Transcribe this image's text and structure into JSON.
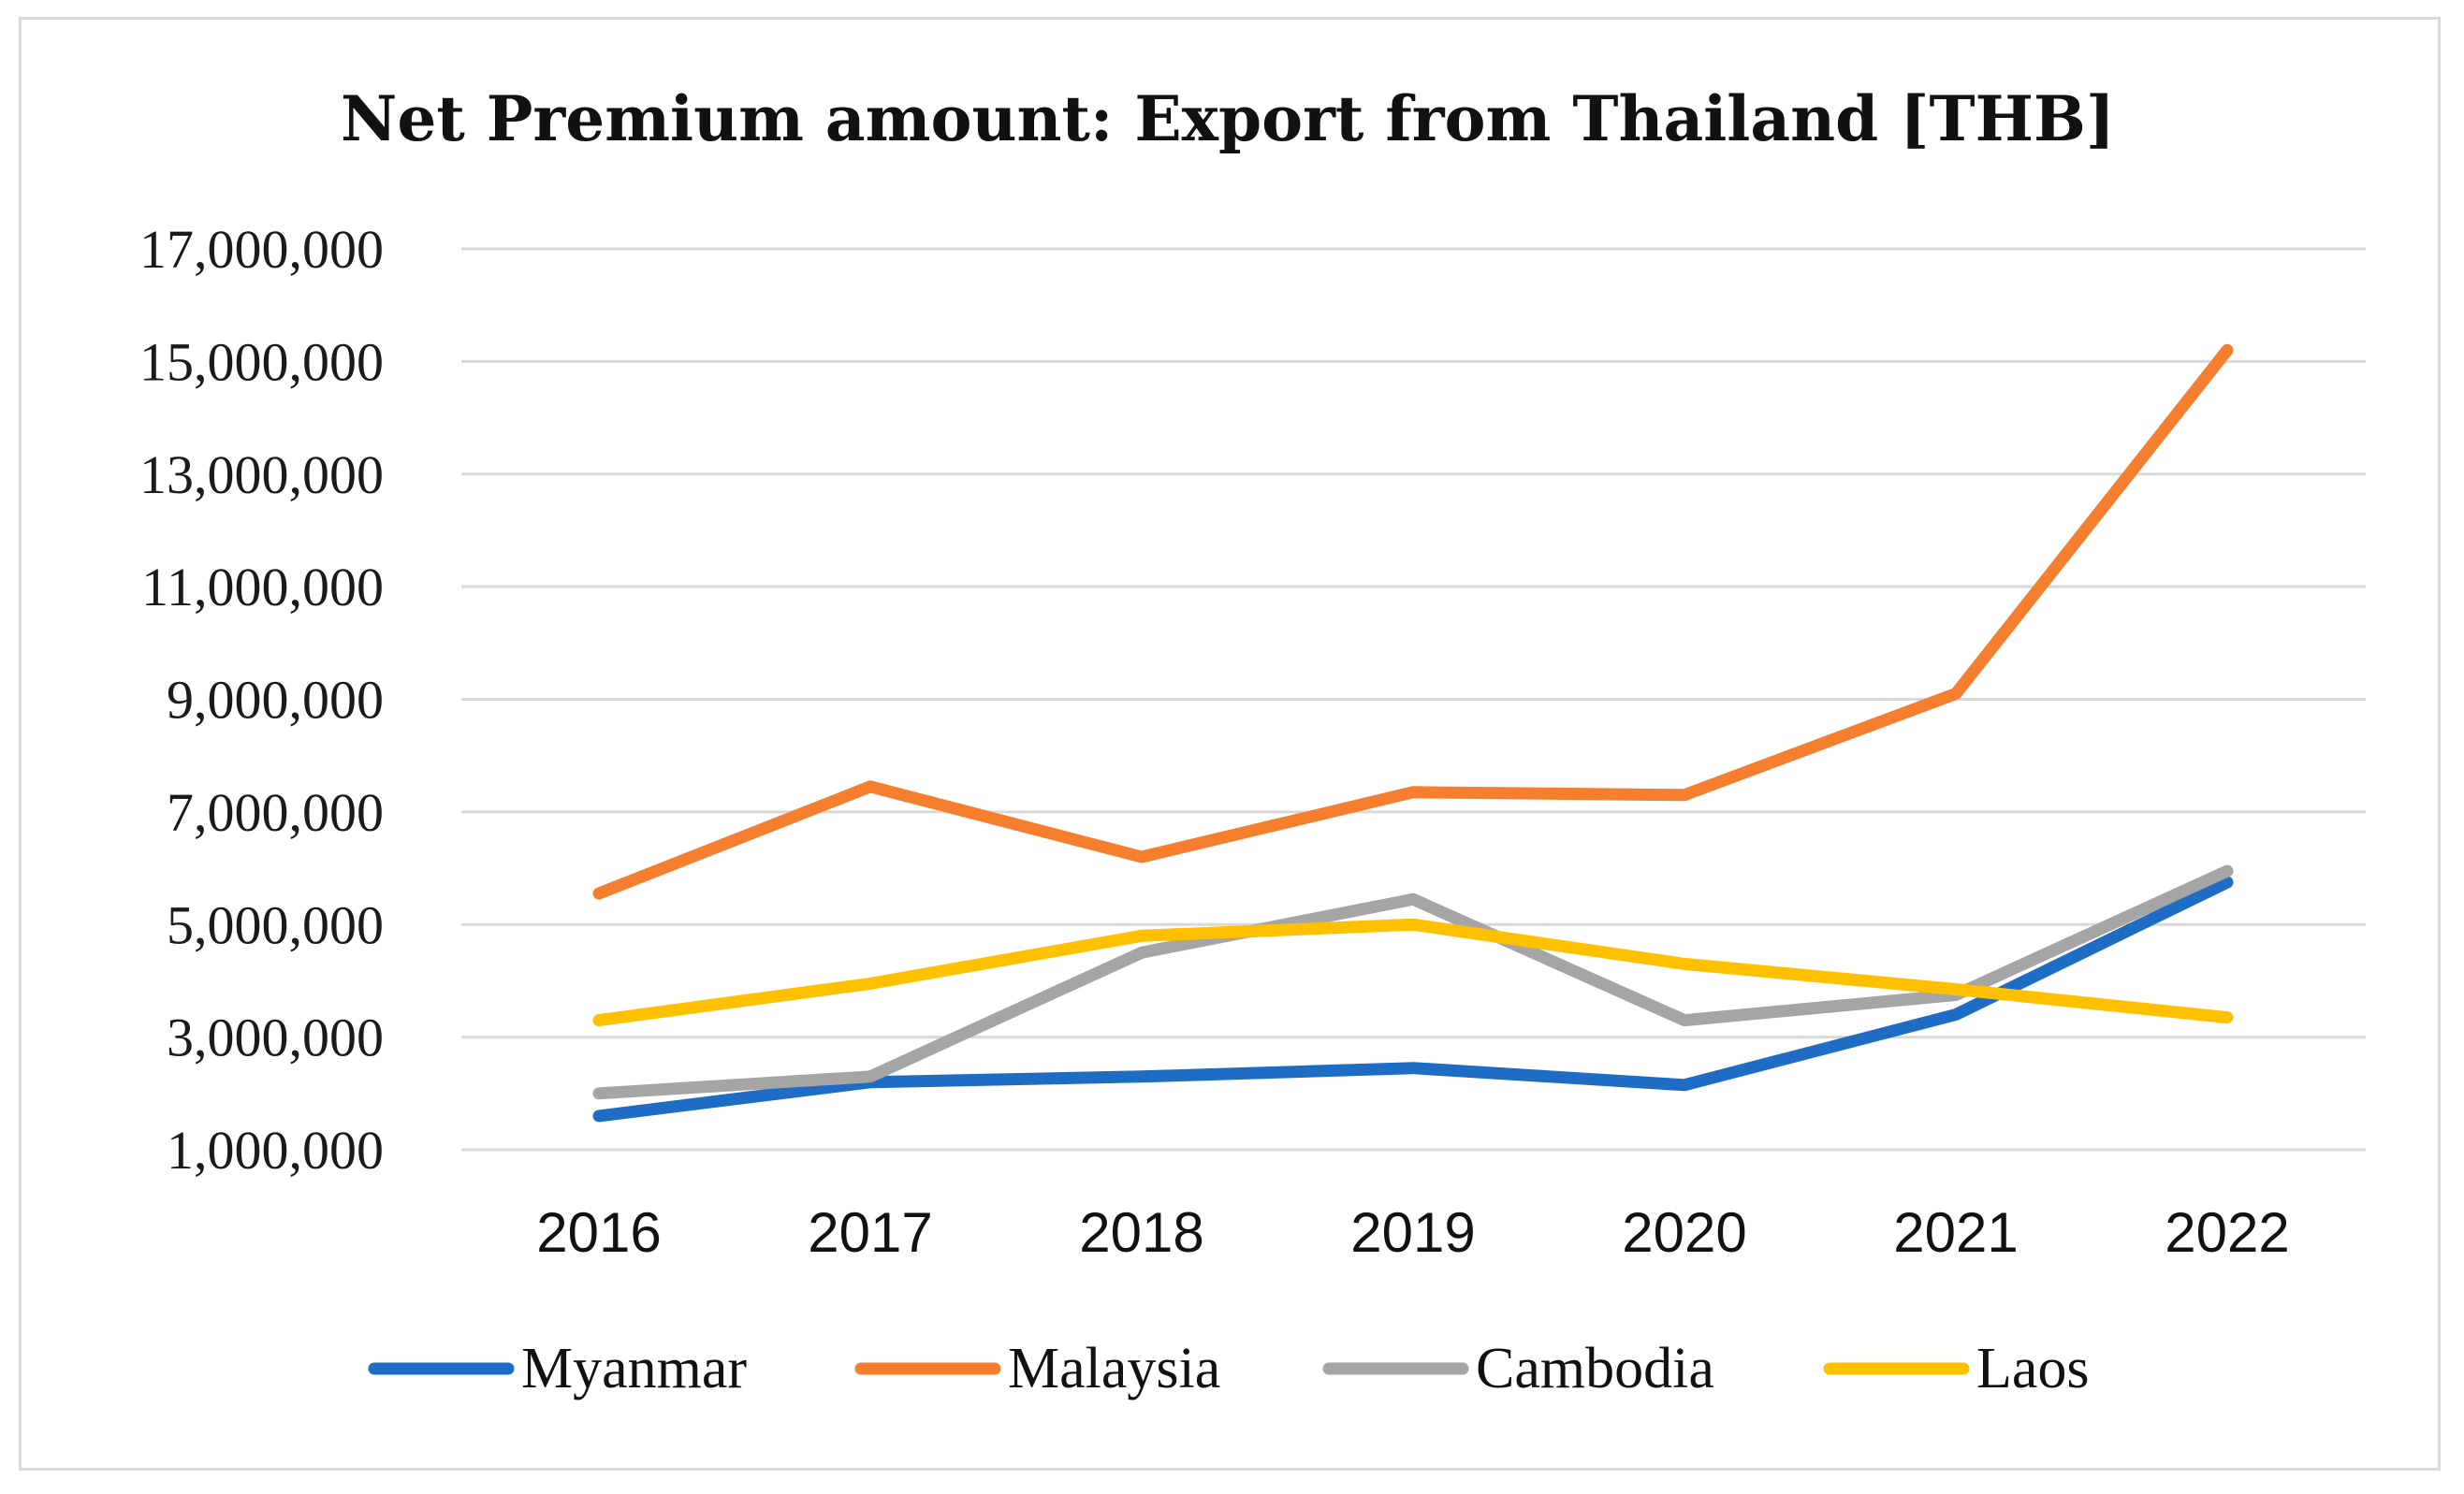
{
  "chart_data": {
    "type": "line",
    "title": "Net Premium amount: Export from Thailand [THB]",
    "xlabel": "",
    "ylabel": "",
    "categories": [
      "2016",
      "2017",
      "2018",
      "2019",
      "2020",
      "2021",
      "2022"
    ],
    "ylim": [
      1000000,
      17000000
    ],
    "yticks": [
      1000000,
      3000000,
      5000000,
      7000000,
      9000000,
      11000000,
      13000000,
      15000000,
      17000000
    ],
    "ytick_labels": [
      "1,000,000",
      "3,000,000",
      "5,000,000",
      "7,000,000",
      "9,000,000",
      "11,000,000",
      "13,000,000",
      "15,000,000",
      "17,000,000"
    ],
    "grid": true,
    "legend_position": "bottom",
    "series": [
      {
        "name": "Myanmar",
        "color": "#1f6cc4",
        "values": [
          1600000,
          2200000,
          2300000,
          2450000,
          2150000,
          3400000,
          5750000
        ]
      },
      {
        "name": "Malaysia",
        "color": "#f57f2f",
        "values": [
          5550000,
          7450000,
          6200000,
          7350000,
          7300000,
          9100000,
          15200000
        ]
      },
      {
        "name": "Cambodia",
        "color": "#a5a5a5",
        "values": [
          2000000,
          2300000,
          4500000,
          5450000,
          3300000,
          3750000,
          5950000
        ]
      },
      {
        "name": "Laos",
        "color": "#ffc000",
        "values": [
          3300000,
          3950000,
          4800000,
          5000000,
          4300000,
          3850000,
          3350000
        ]
      }
    ]
  }
}
